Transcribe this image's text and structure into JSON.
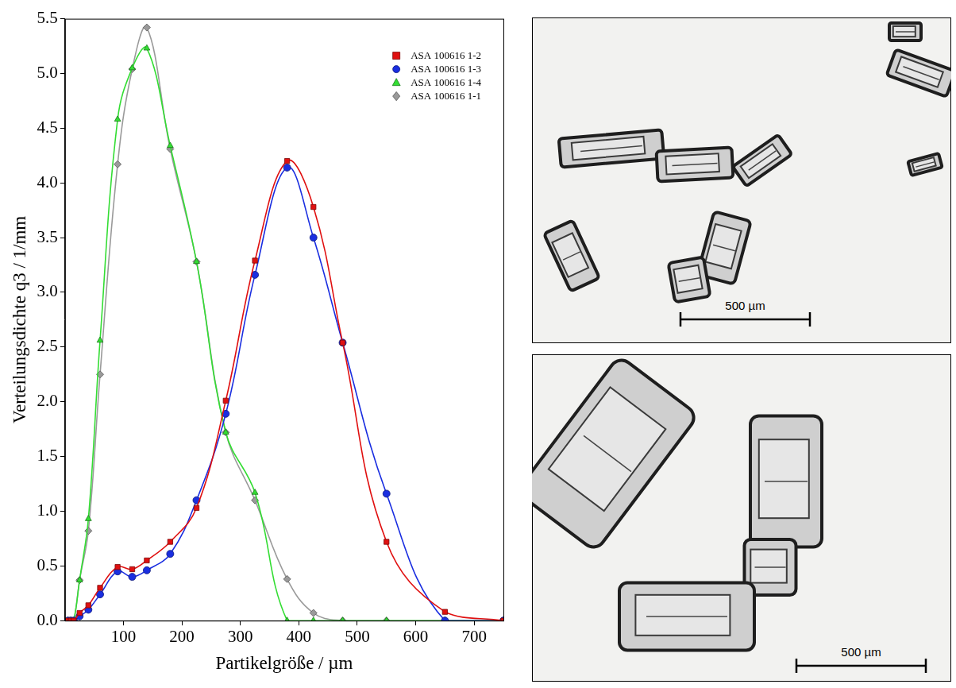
{
  "chart_data": {
    "type": "line",
    "x_label": "Partikelgröße / µm",
    "y_label": "Verteilungsdichte q3 / 1/mm",
    "x": [
      5,
      10,
      15,
      25,
      40,
      60,
      90,
      115,
      140,
      180,
      225,
      275,
      325,
      380,
      425,
      475,
      550,
      650,
      750
    ],
    "series": [
      {
        "name": "ASA 100616 1-2",
        "color": "#e01010",
        "marker": "square",
        "values": [
          0,
          0,
          0,
          0.07,
          0.14,
          0.3,
          0.49,
          0.47,
          0.55,
          0.72,
          1.03,
          2.01,
          3.29,
          4.2,
          3.78,
          2.54,
          0.72,
          0.08,
          0
        ]
      },
      {
        "name": "ASA 100616 1-3",
        "color": "#1a2ee0",
        "marker": "circle",
        "values": [
          0,
          0,
          0,
          0.04,
          0.1,
          0.24,
          0.45,
          0.4,
          0.46,
          0.61,
          1.1,
          1.89,
          3.16,
          4.14,
          3.5,
          2.54,
          1.16,
          0,
          0
        ]
      },
      {
        "name": "ASA 100616 1-4",
        "color": "#33dd33",
        "marker": "triangle",
        "values": [
          0,
          0,
          0,
          0.37,
          0.93,
          2.56,
          4.58,
          5.05,
          5.23,
          4.34,
          3.28,
          1.72,
          1.17,
          0,
          0,
          0,
          0,
          0,
          0
        ]
      },
      {
        "name": "ASA 100616 1-1",
        "color": "#9a9a9a",
        "marker": "diamond",
        "values": [
          0,
          0,
          0,
          0.37,
          0.82,
          2.25,
          4.17,
          5.04,
          5.42,
          4.31,
          3.28,
          1.72,
          1.1,
          0.38,
          0.07,
          0,
          0,
          0,
          0
        ]
      }
    ],
    "xlim": [
      0,
      750
    ],
    "xticks": [
      100,
      200,
      300,
      400,
      500,
      600,
      700
    ],
    "ylim": [
      0,
      5.5
    ],
    "yticks": [
      {
        "value": 0,
        "label": "0.0"
      },
      0.5,
      {
        "value": 1,
        "label": "1.0"
      },
      1.5,
      {
        "value": 2,
        "label": "2.0"
      },
      2.5,
      {
        "value": 3,
        "label": "3.0"
      },
      3.5,
      {
        "value": 4,
        "label": "4.0"
      },
      4.5,
      {
        "value": 5,
        "label": "5.0"
      },
      5.5
    ],
    "grid": false,
    "legend": "upper right"
  },
  "images": [
    {
      "scale_bar": "500 µm"
    },
    {
      "scale_bar": "500 µm"
    }
  ]
}
